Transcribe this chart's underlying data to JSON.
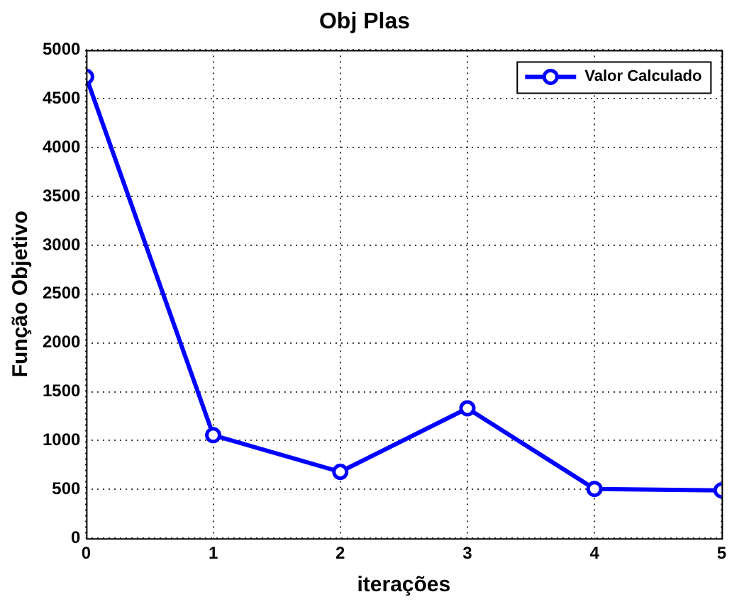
{
  "chart_data": {
    "type": "line",
    "title": "Obj Plas",
    "xlabel": "iterações",
    "ylabel": "Função Objetivo",
    "x": [
      0,
      1,
      2,
      3,
      4,
      5
    ],
    "series": [
      {
        "name": "Valor Calculado",
        "color": "#0000ff",
        "values": [
          4725,
          1055,
          680,
          1330,
          505,
          490
        ]
      }
    ],
    "xlim": [
      0,
      5
    ],
    "xticks": [
      0,
      1,
      2,
      3,
      4,
      5
    ],
    "ylim": [
      0,
      5000
    ],
    "yticks": [
      0,
      500,
      1000,
      1500,
      2000,
      2500,
      3000,
      3500,
      4000,
      4500,
      5000
    ],
    "grid": true,
    "legend": "top right",
    "marker": "circle",
    "line_style": "solid"
  }
}
